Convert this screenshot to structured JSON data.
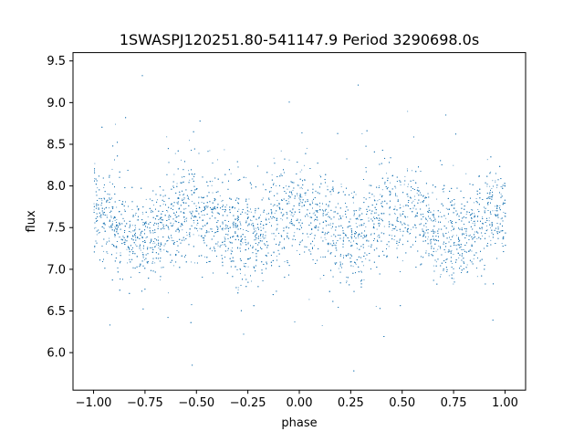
{
  "chart_data": {
    "type": "scatter",
    "title": "1SWASPJ120251.80-541147.9 Period 3290698.0s",
    "xlabel": "phase",
    "ylabel": "flux",
    "xlim": [
      -1.1,
      1.1
    ],
    "ylim": [
      5.55,
      9.6
    ],
    "xticks": [
      -1.0,
      -0.75,
      -0.5,
      -0.25,
      0.0,
      0.25,
      0.5,
      0.75,
      1.0
    ],
    "xtick_labels": [
      "−1.00",
      "−0.75",
      "−0.50",
      "−0.25",
      "0.00",
      "0.25",
      "0.50",
      "0.75",
      "1.00"
    ],
    "yticks": [
      6.0,
      6.5,
      7.0,
      7.5,
      8.0,
      8.5,
      9.0,
      9.5
    ],
    "ytick_labels": [
      "6.0",
      "6.5",
      "7.0",
      "7.5",
      "8.0",
      "8.5",
      "9.0",
      "9.5"
    ],
    "grid": false,
    "legend": "none",
    "marker_color": "#1f77b4",
    "phase_range": [
      -1.0,
      1.0
    ],
    "flux_median": 7.55,
    "flux_core_range": [
      7.0,
      8.2
    ],
    "flux_full_range": [
      5.75,
      9.45
    ],
    "notes_visible": "dense vertical streaks of points, periodic in phase"
  }
}
